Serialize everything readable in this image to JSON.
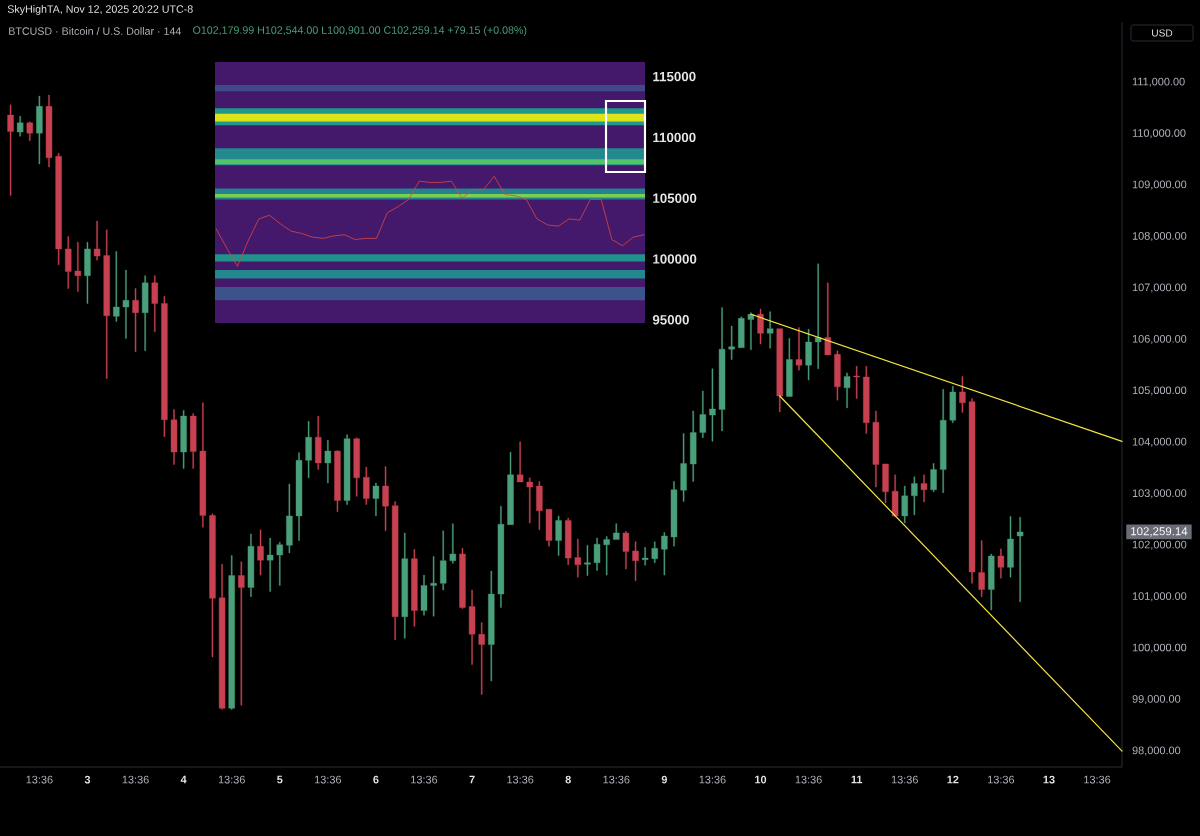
{
  "chart_data": [
    {
      "type": "candlestick",
      "title": "BTCUSD · Bitcoin / U.S. Dollar · 144",
      "subtitle": "O102,179.99 H102,544.00 L100,901.00 C102,259.14 +79.15 (+0.08%)",
      "annotations": [
        "SkyHighTA, Nov 12, 2025 20:22 UTC-8",
        "USD",
        "102,259.14"
      ],
      "x": [
        "2025-11-02T06:24",
        "2025-11-02T08:48",
        "2025-11-02T11:12",
        "2025-11-02T13:36",
        "2025-11-02T16:00",
        "2025-11-02T18:24",
        "2025-11-02T20:48",
        "2025-11-02T23:12",
        "2025-11-03T01:36",
        "2025-11-03T04:00",
        "2025-11-03T06:24",
        "2025-11-03T08:48",
        "2025-11-03T11:12",
        "2025-11-03T13:36",
        "2025-11-03T16:00",
        "2025-11-03T18:24",
        "2025-11-03T20:48",
        "2025-11-03T23:12",
        "2025-11-04T01:36",
        "2025-11-04T04:00",
        "2025-11-04T06:24",
        "2025-11-04T08:48",
        "2025-11-04T11:12",
        "2025-11-04T13:36",
        "2025-11-04T16:00",
        "2025-11-04T18:24",
        "2025-11-04T20:48",
        "2025-11-04T23:12",
        "2025-11-05T01:36",
        "2025-11-05T04:00",
        "2025-11-05T06:24",
        "2025-11-05T08:48",
        "2025-11-05T11:12",
        "2025-11-05T13:36",
        "2025-11-05T16:00",
        "2025-11-05T18:24",
        "2025-11-05T20:48",
        "2025-11-05T23:12",
        "2025-11-06T01:36",
        "2025-11-06T04:00",
        "2025-11-06T06:24",
        "2025-11-06T08:48",
        "2025-11-06T11:12",
        "2025-11-06T13:36",
        "2025-11-06T16:00",
        "2025-11-06T18:24",
        "2025-11-06T20:48",
        "2025-11-06T23:12",
        "2025-11-07T01:36",
        "2025-11-07T04:00",
        "2025-11-07T06:24",
        "2025-11-07T08:48",
        "2025-11-07T11:12",
        "2025-11-07T13:36",
        "2025-11-07T16:00",
        "2025-11-07T18:24",
        "2025-11-07T20:48",
        "2025-11-07T23:12",
        "2025-11-08T01:36",
        "2025-11-08T04:00",
        "2025-11-08T06:24",
        "2025-11-08T08:48",
        "2025-11-08T11:12",
        "2025-11-08T13:36",
        "2025-11-08T16:00",
        "2025-11-08T18:24",
        "2025-11-08T20:48",
        "2025-11-08T23:12",
        "2025-11-09T01:36",
        "2025-11-09T04:00",
        "2025-11-09T06:24",
        "2025-11-09T08:48",
        "2025-11-09T11:12",
        "2025-11-09T13:36",
        "2025-11-09T16:00",
        "2025-11-09T18:24",
        "2025-11-09T20:48",
        "2025-11-09T23:12",
        "2025-11-10T01:36",
        "2025-11-10T04:00",
        "2025-11-10T06:24",
        "2025-11-10T08:48",
        "2025-11-10T11:12",
        "2025-11-10T13:36",
        "2025-11-10T16:00",
        "2025-11-10T18:24",
        "2025-11-10T20:48",
        "2025-11-10T23:12",
        "2025-11-11T01:36",
        "2025-11-11T04:00",
        "2025-11-11T06:24",
        "2025-11-11T08:48",
        "2025-11-11T11:12",
        "2025-11-11T13:36",
        "2025-11-11T16:00",
        "2025-11-11T18:24",
        "2025-11-11T20:48",
        "2025-11-11T23:12",
        "2025-11-12T01:36",
        "2025-11-12T04:00",
        "2025-11-12T06:24",
        "2025-11-12T08:48",
        "2025-11-12T11:12",
        "2025-11-12T13:36",
        "2025-11-12T16:00",
        "2025-11-12T18:24"
      ],
      "ohlc": [
        [
          110360,
          110560,
          108800,
          110040
        ],
        [
          110030,
          110340,
          109950,
          110210
        ],
        [
          110210,
          110230,
          109860,
          110010
        ],
        [
          110010,
          110730,
          109410,
          110530
        ],
        [
          110530,
          110750,
          109350,
          109530
        ],
        [
          109560,
          109620,
          107450,
          107760
        ],
        [
          107760,
          108000,
          106990,
          107320
        ],
        [
          107330,
          107890,
          106930,
          107240
        ],
        [
          107240,
          107890,
          106700,
          107760
        ],
        [
          107760,
          108300,
          107540,
          107620
        ],
        [
          107630,
          108130,
          105240,
          106460
        ],
        [
          106450,
          107710,
          106350,
          106630
        ],
        [
          106630,
          107350,
          106020,
          106760
        ],
        [
          106760,
          106990,
          105760,
          106520
        ],
        [
          106520,
          107240,
          105780,
          107100
        ],
        [
          107100,
          107240,
          106150,
          106700
        ],
        [
          106700,
          106840,
          104110,
          104440
        ],
        [
          104440,
          104640,
          103570,
          103810
        ],
        [
          103810,
          104620,
          103490,
          104510
        ],
        [
          104510,
          104560,
          103490,
          103820
        ],
        [
          103830,
          104770,
          102350,
          102580
        ],
        [
          102580,
          102610,
          99830,
          100970
        ],
        [
          100980,
          101630,
          98810,
          98830
        ],
        [
          98830,
          101800,
          98810,
          101410
        ],
        [
          101410,
          101680,
          98890,
          101180
        ],
        [
          101180,
          102220,
          101000,
          101980
        ],
        [
          101980,
          102300,
          101420,
          101710
        ],
        [
          101710,
          102140,
          101100,
          101810
        ],
        [
          101810,
          102060,
          101220,
          102010
        ],
        [
          102000,
          103190,
          101850,
          102570
        ],
        [
          102570,
          103800,
          102090,
          103650
        ],
        [
          103650,
          104410,
          103310,
          104100
        ],
        [
          104100,
          104510,
          103470,
          103600
        ],
        [
          103600,
          104040,
          103210,
          103830
        ],
        [
          103830,
          103840,
          102650,
          102870
        ],
        [
          102870,
          104150,
          102790,
          104070
        ],
        [
          104070,
          104090,
          102950,
          103310
        ],
        [
          103320,
          103520,
          102790,
          102910
        ],
        [
          102910,
          103210,
          102570,
          103150
        ],
        [
          103150,
          103530,
          102280,
          102760
        ],
        [
          102770,
          102850,
          100160,
          100610
        ],
        [
          100610,
          102240,
          100190,
          101740
        ],
        [
          101740,
          101920,
          100420,
          100730
        ],
        [
          100730,
          101420,
          100640,
          101220
        ],
        [
          101220,
          101780,
          100620,
          101260
        ],
        [
          101260,
          102280,
          101130,
          101700
        ],
        [
          101700,
          102420,
          101650,
          101830
        ],
        [
          101830,
          101940,
          100770,
          100790
        ],
        [
          100810,
          101130,
          99680,
          100270
        ],
        [
          100270,
          100500,
          99100,
          100070
        ],
        [
          100070,
          101500,
          99360,
          101050
        ],
        [
          101050,
          102760,
          100790,
          102410
        ],
        [
          102400,
          103810,
          102400,
          103370
        ],
        [
          103370,
          104010,
          103230,
          103230
        ],
        [
          103230,
          103310,
          102430,
          103130
        ],
        [
          103150,
          103240,
          102300,
          102670
        ],
        [
          102700,
          102700,
          101980,
          102090
        ],
        [
          102090,
          102570,
          101800,
          102480
        ],
        [
          102480,
          102530,
          101620,
          101750
        ],
        [
          101760,
          102120,
          101380,
          101620
        ],
        [
          101630,
          102000,
          101410,
          101660
        ],
        [
          101660,
          102140,
          101510,
          102020
        ],
        [
          102010,
          102170,
          101420,
          102110
        ],
        [
          102110,
          102420,
          102110,
          102240
        ],
        [
          102240,
          102270,
          101540,
          101880
        ],
        [
          101890,
          102070,
          101310,
          101700
        ],
        [
          101720,
          101960,
          101610,
          101750
        ],
        [
          101740,
          102070,
          101660,
          101940
        ],
        [
          101920,
          102250,
          101420,
          102180
        ],
        [
          102160,
          103240,
          101980,
          103080
        ],
        [
          103070,
          104170,
          102850,
          103590
        ],
        [
          103580,
          104610,
          103240,
          104190
        ],
        [
          104190,
          105000,
          104090,
          104540
        ],
        [
          104530,
          105430,
          104020,
          104650
        ],
        [
          104640,
          106620,
          104220,
          105810
        ],
        [
          105810,
          106260,
          105610,
          105860
        ],
        [
          105840,
          106440,
          105840,
          106410
        ],
        [
          106390,
          106520,
          105800,
          106490
        ],
        [
          106490,
          106590,
          105910,
          106120
        ],
        [
          106120,
          106540,
          105830,
          106210
        ],
        [
          106210,
          106210,
          104590,
          104900
        ],
        [
          104890,
          106020,
          104890,
          105610
        ],
        [
          105610,
          106230,
          105400,
          105500
        ],
        [
          105500,
          106200,
          105210,
          105950
        ],
        [
          105950,
          107470,
          105430,
          106040
        ],
        [
          106040,
          107100,
          105700,
          105700
        ],
        [
          105710,
          105780,
          104820,
          105080
        ],
        [
          105060,
          105350,
          104670,
          105280
        ],
        [
          105290,
          105480,
          104850,
          105270
        ],
        [
          105270,
          105480,
          104170,
          104380
        ],
        [
          104390,
          104610,
          103130,
          103570
        ],
        [
          103580,
          103580,
          102820,
          103040
        ],
        [
          103050,
          103370,
          102550,
          102570
        ],
        [
          102570,
          103150,
          102430,
          102960
        ],
        [
          102960,
          103330,
          102590,
          103200
        ],
        [
          103200,
          103370,
          102840,
          103080
        ],
        [
          103080,
          103590,
          103040,
          103470
        ],
        [
          103470,
          105030,
          103020,
          104430
        ],
        [
          104430,
          105090,
          104380,
          104980
        ],
        [
          104980,
          105280,
          104580,
          104770
        ],
        [
          104790,
          104850,
          101260,
          101480
        ],
        [
          101470,
          102090,
          101000,
          101140
        ],
        [
          101140,
          101830,
          100740,
          101790
        ],
        [
          101790,
          101930,
          101360,
          101570
        ],
        [
          101570,
          102560,
          101380,
          102120
        ],
        [
          102179.99,
          102544.0,
          100901.0,
          102259.14
        ]
      ],
      "colors": [
        "#c84150",
        "#4aa07a",
        "#c84150",
        "#4aa07a",
        "#c84150",
        "#c84150",
        "#c84150",
        "#c84150",
        "#4aa07a",
        "#c84150",
        "#c84150",
        "#4aa07a",
        "#4aa07a",
        "#c84150",
        "#4aa07a",
        "#c84150",
        "#c84150",
        "#c84150",
        "#4aa07a",
        "#c84150",
        "#c84150",
        "#c84150",
        "#c84150",
        "#4aa07a",
        "#c84150",
        "#4aa07a",
        "#c84150",
        "#4aa07a",
        "#4aa07a",
        "#4aa07a",
        "#4aa07a",
        "#4aa07a",
        "#c84150",
        "#4aa07a",
        "#c84150",
        "#4aa07a",
        "#c84150",
        "#c84150",
        "#4aa07a",
        "#c84150",
        "#c84150",
        "#4aa07a",
        "#c84150",
        "#4aa07a",
        "#4aa07a",
        "#4aa07a",
        "#4aa07a",
        "#c84150",
        "#c84150",
        "#c84150",
        "#4aa07a",
        "#4aa07a",
        "#4aa07a",
        "#c84150",
        "#c84150",
        "#c84150",
        "#c84150",
        "#4aa07a",
        "#c84150",
        "#c84150",
        "#4aa07a",
        "#4aa07a",
        "#4aa07a",
        "#4aa07a",
        "#c84150",
        "#c84150",
        "#4aa07a",
        "#4aa07a",
        "#4aa07a",
        "#4aa07a",
        "#4aa07a",
        "#4aa07a",
        "#4aa07a",
        "#4aa07a",
        "#4aa07a",
        "#4aa07a",
        "#4aa07a",
        "#4aa07a",
        "#c84150",
        "#4aa07a",
        "#c84150",
        "#4aa07a",
        "#c84150",
        "#4aa07a",
        "#4aa07a",
        "#c84150",
        "#c84150",
        "#4aa07a",
        "#c84150",
        "#c84150",
        "#c84150",
        "#c84150",
        "#c84150",
        "#4aa07a",
        "#4aa07a",
        "#c84150",
        "#4aa07a",
        "#4aa07a",
        "#4aa07a",
        "#c84150",
        "#c84150",
        "#c84150",
        "#4aa07a",
        "#c84150",
        "#4aa07a",
        "#4aa07a"
      ],
      "series": [
        {
          "type": "line",
          "x": [
            "2025-11-09T23:12",
            "2025-11-13T19:50"
          ],
          "values": [
            106490,
            104020
          ],
          "color": "#f2e540"
        },
        {
          "type": "line",
          "x": [
            "2025-11-10T06:24",
            "2025-11-13T19:50"
          ],
          "values": [
            104900,
            98000
          ],
          "color": "#f2e540"
        }
      ],
      "xlim": [
        "2025-11-02T03:46",
        "2025-11-13T19:50"
      ],
      "ylim": [
        97690,
        112170
      ],
      "xticks": [
        {
          "value": "2025-11-02T13:36",
          "label": "13:36"
        },
        {
          "value": "2025-11-03T01:36",
          "label": "3"
        },
        {
          "value": "2025-11-03T13:36",
          "label": "13:36"
        },
        {
          "value": "2025-11-04T01:36",
          "label": "4"
        },
        {
          "value": "2025-11-04T13:36",
          "label": "13:36"
        },
        {
          "value": "2025-11-05T01:36",
          "label": "5"
        },
        {
          "value": "2025-11-05T13:36",
          "label": "13:36"
        },
        {
          "value": "2025-11-06T01:36",
          "label": "6"
        },
        {
          "value": "2025-11-06T13:36",
          "label": "13:36"
        },
        {
          "value": "2025-11-07T01:36",
          "label": "7"
        },
        {
          "value": "2025-11-07T13:36",
          "label": "13:36"
        },
        {
          "value": "2025-11-08T01:36",
          "label": "8"
        },
        {
          "value": "2025-11-08T13:36",
          "label": "13:36"
        },
        {
          "value": "2025-11-09T01:36",
          "label": "9"
        },
        {
          "value": "2025-11-09T13:36",
          "label": "13:36"
        },
        {
          "value": "2025-11-10T01:36",
          "label": "10"
        },
        {
          "value": "2025-11-10T13:36",
          "label": "13:36"
        },
        {
          "value": "2025-11-11T01:36",
          "label": "11"
        },
        {
          "value": "2025-11-11T13:36",
          "label": "13:36"
        },
        {
          "value": "2025-11-12T01:36",
          "label": "12"
        },
        {
          "value": "2025-11-12T13:36",
          "label": "13:36"
        },
        {
          "value": "2025-11-13T01:36",
          "label": "13"
        },
        {
          "value": "2025-11-13T13:36",
          "label": "13:36"
        }
      ],
      "yticks": [
        {
          "value": 98000,
          "label": "98,000.00"
        },
        {
          "value": 99000,
          "label": "99,000.00"
        },
        {
          "value": 100000,
          "label": "100,000.00"
        },
        {
          "value": 101000,
          "label": "101,000.00"
        },
        {
          "value": 102000,
          "label": "102,000.00"
        },
        {
          "value": 103000,
          "label": "103,000.00"
        },
        {
          "value": 104000,
          "label": "104,000.00"
        },
        {
          "value": 105000,
          "label": "105,000.00"
        },
        {
          "value": 106000,
          "label": "106,000.00"
        },
        {
          "value": 107000,
          "label": "107,000.00"
        },
        {
          "value": 108000,
          "label": "108,000.00"
        },
        {
          "value": 109000,
          "label": "109,000.00"
        },
        {
          "value": 110000,
          "label": "110,000.00"
        },
        {
          "value": 111000,
          "label": "111,000.00"
        }
      ]
    },
    {
      "type": "line",
      "categories": [
        null,
        null,
        null,
        null,
        null,
        null,
        null,
        null,
        null,
        null,
        null,
        null,
        null,
        null,
        null,
        null,
        null,
        null,
        null,
        null,
        null,
        null,
        null,
        null,
        null,
        null,
        null,
        null,
        null,
        null,
        null,
        null,
        null,
        null,
        null,
        null,
        null,
        null,
        null,
        null,
        null
      ],
      "series": [
        {
          "color": "#e0453c",
          "values": [
            102500,
            100900,
            99400,
            101500,
            103300,
            103600,
            102900,
            102300,
            102100,
            101800,
            101700,
            101900,
            102000,
            101600,
            101700,
            101700,
            103800,
            104300,
            104900,
            106400,
            106300,
            106300,
            106400,
            105000,
            105700,
            105700,
            106800,
            105300,
            105200,
            104900,
            103300,
            102800,
            102700,
            103300,
            103200,
            104900,
            104900,
            101600,
            101100,
            101800,
            102000
          ]
        }
      ],
      "ylim": [
        94740,
        116200
      ],
      "yticks": [
        95000,
        100000,
        105000,
        110000,
        115000
      ],
      "tick_labels": "y",
      "bands": [
        {
          "axis": "y",
          "from": 113800,
          "to": 114300,
          "color": "#3e4a89"
        },
        {
          "axis": "y",
          "from": 111000,
          "to": 112400,
          "color": "#1f9a8a"
        },
        {
          "axis": "y",
          "from": 111300,
          "to": 111950,
          "color": "#dde318"
        },
        {
          "axis": "y",
          "from": 107700,
          "to": 109100,
          "color": "#23898e"
        },
        {
          "axis": "y",
          "from": 107800,
          "to": 108200,
          "color": "#53c567"
        },
        {
          "axis": "y",
          "from": 104900,
          "to": 105800,
          "color": "#26828e"
        },
        {
          "axis": "y",
          "from": 105050,
          "to": 105350,
          "color": "#7ad151"
        },
        {
          "axis": "y",
          "from": 99800,
          "to": 100400,
          "color": "#21918c"
        },
        {
          "axis": "y",
          "from": 98400,
          "to": 99100,
          "color": "#23888e"
        },
        {
          "axis": "y",
          "from": 96600,
          "to": 97700,
          "color": "#3b528b"
        }
      ]
    }
  ]
}
